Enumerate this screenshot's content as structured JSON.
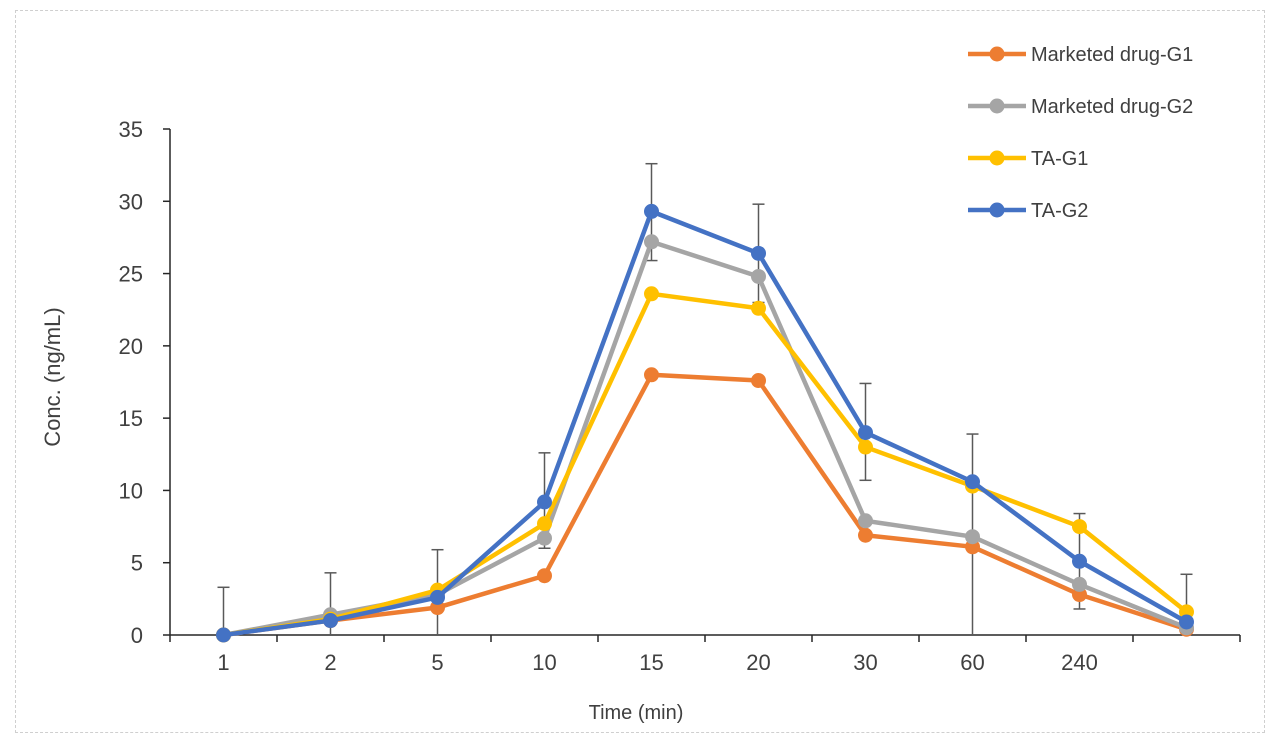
{
  "chart_data": {
    "type": "line",
    "xlabel": "Time (min)",
    "ylabel": "Conc. (ng/mL)",
    "categories": [
      "1",
      "2",
      "5",
      "10",
      "15",
      "20",
      "30",
      "60",
      "240",
      ""
    ],
    "ylim": [
      0,
      35
    ],
    "yticks": [
      0,
      5,
      10,
      15,
      20,
      25,
      30,
      35
    ],
    "grid": false,
    "legend": "top-right",
    "series": [
      {
        "name": "Marketed drug-G1",
        "color": "#ED7D31",
        "values": [
          0,
          1.0,
          1.9,
          4.1,
          18.0,
          17.6,
          6.9,
          6.1,
          2.8,
          0.4
        ]
      },
      {
        "name": "Marketed drug-G2",
        "color": "#A5A5A5",
        "values": [
          0,
          1.4,
          2.8,
          6.7,
          27.2,
          24.8,
          7.9,
          6.8,
          3.5,
          0.5
        ]
      },
      {
        "name": "TA-G1",
        "color": "#FFC000",
        "values": [
          0,
          1.1,
          3.1,
          7.7,
          23.6,
          22.6,
          13.0,
          10.3,
          7.5,
          1.6
        ]
      },
      {
        "name": "TA-G2",
        "color": "#4472C4",
        "values": [
          0,
          1.0,
          2.6,
          9.2,
          29.3,
          26.4,
          14.0,
          10.6,
          5.1,
          0.9
        ]
      }
    ],
    "error_bars": [
      {
        "category_index": 0,
        "upper": 3.3
      },
      {
        "category_index": 1,
        "upper": 4.3
      },
      {
        "category_index": 2,
        "upper": 5.9
      },
      {
        "category_index": 3,
        "upper": 12.6,
        "lower": 6.0
      },
      {
        "category_index": 4,
        "upper": 32.6,
        "lower": 25.9
      },
      {
        "category_index": 5,
        "upper": 29.8,
        "lower": 23.0
      },
      {
        "category_index": 6,
        "upper": 17.4,
        "lower": 10.7
      },
      {
        "category_index": 7,
        "upper": 13.9
      },
      {
        "category_index": 8,
        "upper": 8.4,
        "lower": 1.8
      },
      {
        "category_index": 9,
        "upper": 4.2
      }
    ],
    "error_bar_color": "#595959"
  }
}
